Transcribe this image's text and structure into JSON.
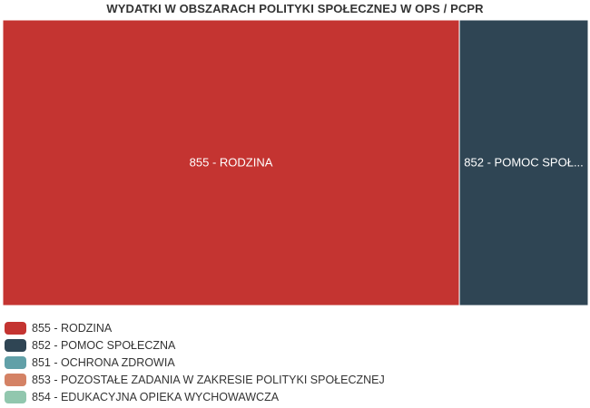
{
  "chart_data": {
    "type": "treemap",
    "title": "WYDATKI W OBSZARACH POLITYKI SPOŁECZNEJ W OPS / PCPR",
    "series": [
      {
        "name": "855 - RODZINA",
        "label": "855 - RODZINA",
        "value": 78,
        "color": "#c43431"
      },
      {
        "name": "852 - POMOC SPOŁECZNA",
        "label": "852 - POMOC SPOŁ...",
        "value": 22,
        "color": "#2f4554"
      },
      {
        "name": "851 - OCHRONA ZDROWIA",
        "label": "",
        "value": 0,
        "color": "#61a0a8"
      },
      {
        "name": "853 - POZOSTAŁE ZADANIA W ZAKRESIE POLITYKI SPOŁECZNEJ",
        "label": "",
        "value": 0,
        "color": "#d48265"
      },
      {
        "name": "854 - EDUKACYJNA OPIEKA WYCHOWAWCZA",
        "label": "",
        "value": 0,
        "color": "#91c7ae"
      }
    ],
    "legend_position": "bottom-left"
  }
}
